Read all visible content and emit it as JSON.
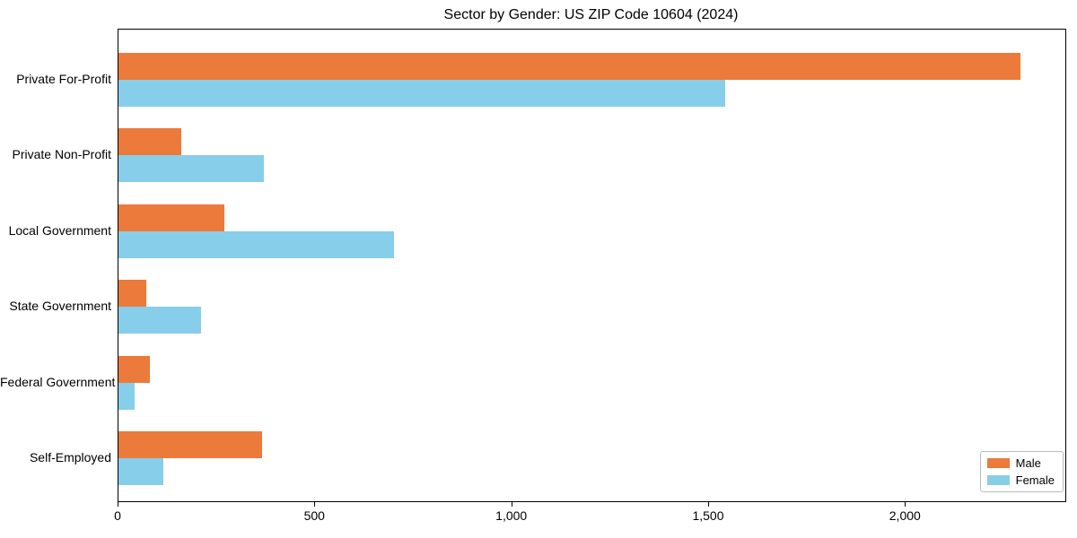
{
  "chart_data": {
    "type": "bar",
    "orientation": "horizontal",
    "title": "Sector by Gender: US ZIP Code 10604 (2024)",
    "categories": [
      "Private For-Profit",
      "Private Non-Profit",
      "Local Government",
      "State Government",
      "Federal Government",
      "Self-Employed"
    ],
    "series": [
      {
        "name": "Male",
        "color": "#EB7A3B",
        "values": [
          2290,
          160,
          270,
          70,
          80,
          365
        ]
      },
      {
        "name": "Female",
        "color": "#87CEEB",
        "values": [
          1540,
          370,
          700,
          210,
          40,
          115
        ]
      }
    ],
    "xlabel": "",
    "ylabel": "",
    "xlim": [
      0,
      2405
    ],
    "x_ticks": [
      0,
      500,
      1000,
      1500,
      2000
    ],
    "x_tick_labels": [
      "0",
      "500",
      "1,000",
      "1,500",
      "2,000"
    ],
    "grid": false,
    "legend": {
      "position": "lower right",
      "entries": [
        "Male",
        "Female"
      ]
    }
  }
}
